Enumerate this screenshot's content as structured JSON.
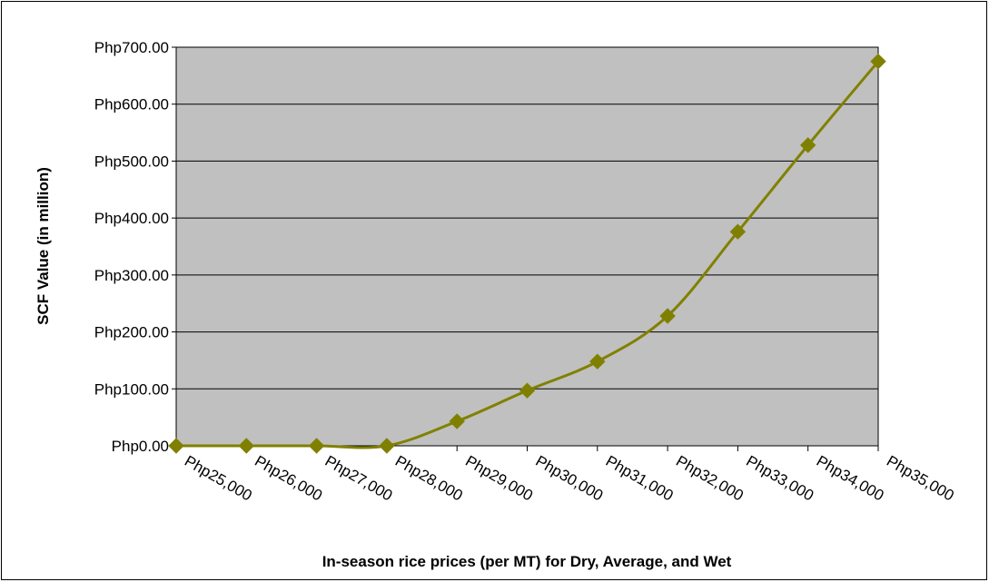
{
  "chart_data": {
    "type": "line",
    "x_label": "In-season rice prices (per MT) for Dry, Average, and Wet",
    "y_label": "SCF Value (in million)",
    "categories": [
      "Php25,000",
      "Php26,000",
      "Php27,000",
      "Php28,000",
      "Php29,000",
      "Php30,000",
      "Php31,000",
      "Php32,000",
      "Php33,000",
      "Php34,000",
      "Php35,000"
    ],
    "series": [
      {
        "color": "#808000",
        "values": [
          0,
          0,
          0,
          0,
          43,
          97,
          148,
          228,
          376,
          528,
          675
        ]
      }
    ],
    "ylim": [
      0,
      700
    ],
    "yticks": [
      {
        "value": 0,
        "label": "Php0.00"
      },
      {
        "value": 100,
        "label": "Php100.00"
      },
      {
        "value": 200,
        "label": "Php200.00"
      },
      {
        "value": 300,
        "label": "Php300.00"
      },
      {
        "value": 400,
        "label": "Php400.00"
      },
      {
        "value": 500,
        "label": "Php500.00"
      },
      {
        "value": 600,
        "label": "Php600.00"
      },
      {
        "value": 700,
        "label": "Php700.00"
      }
    ],
    "grid": true,
    "smooth": true
  }
}
